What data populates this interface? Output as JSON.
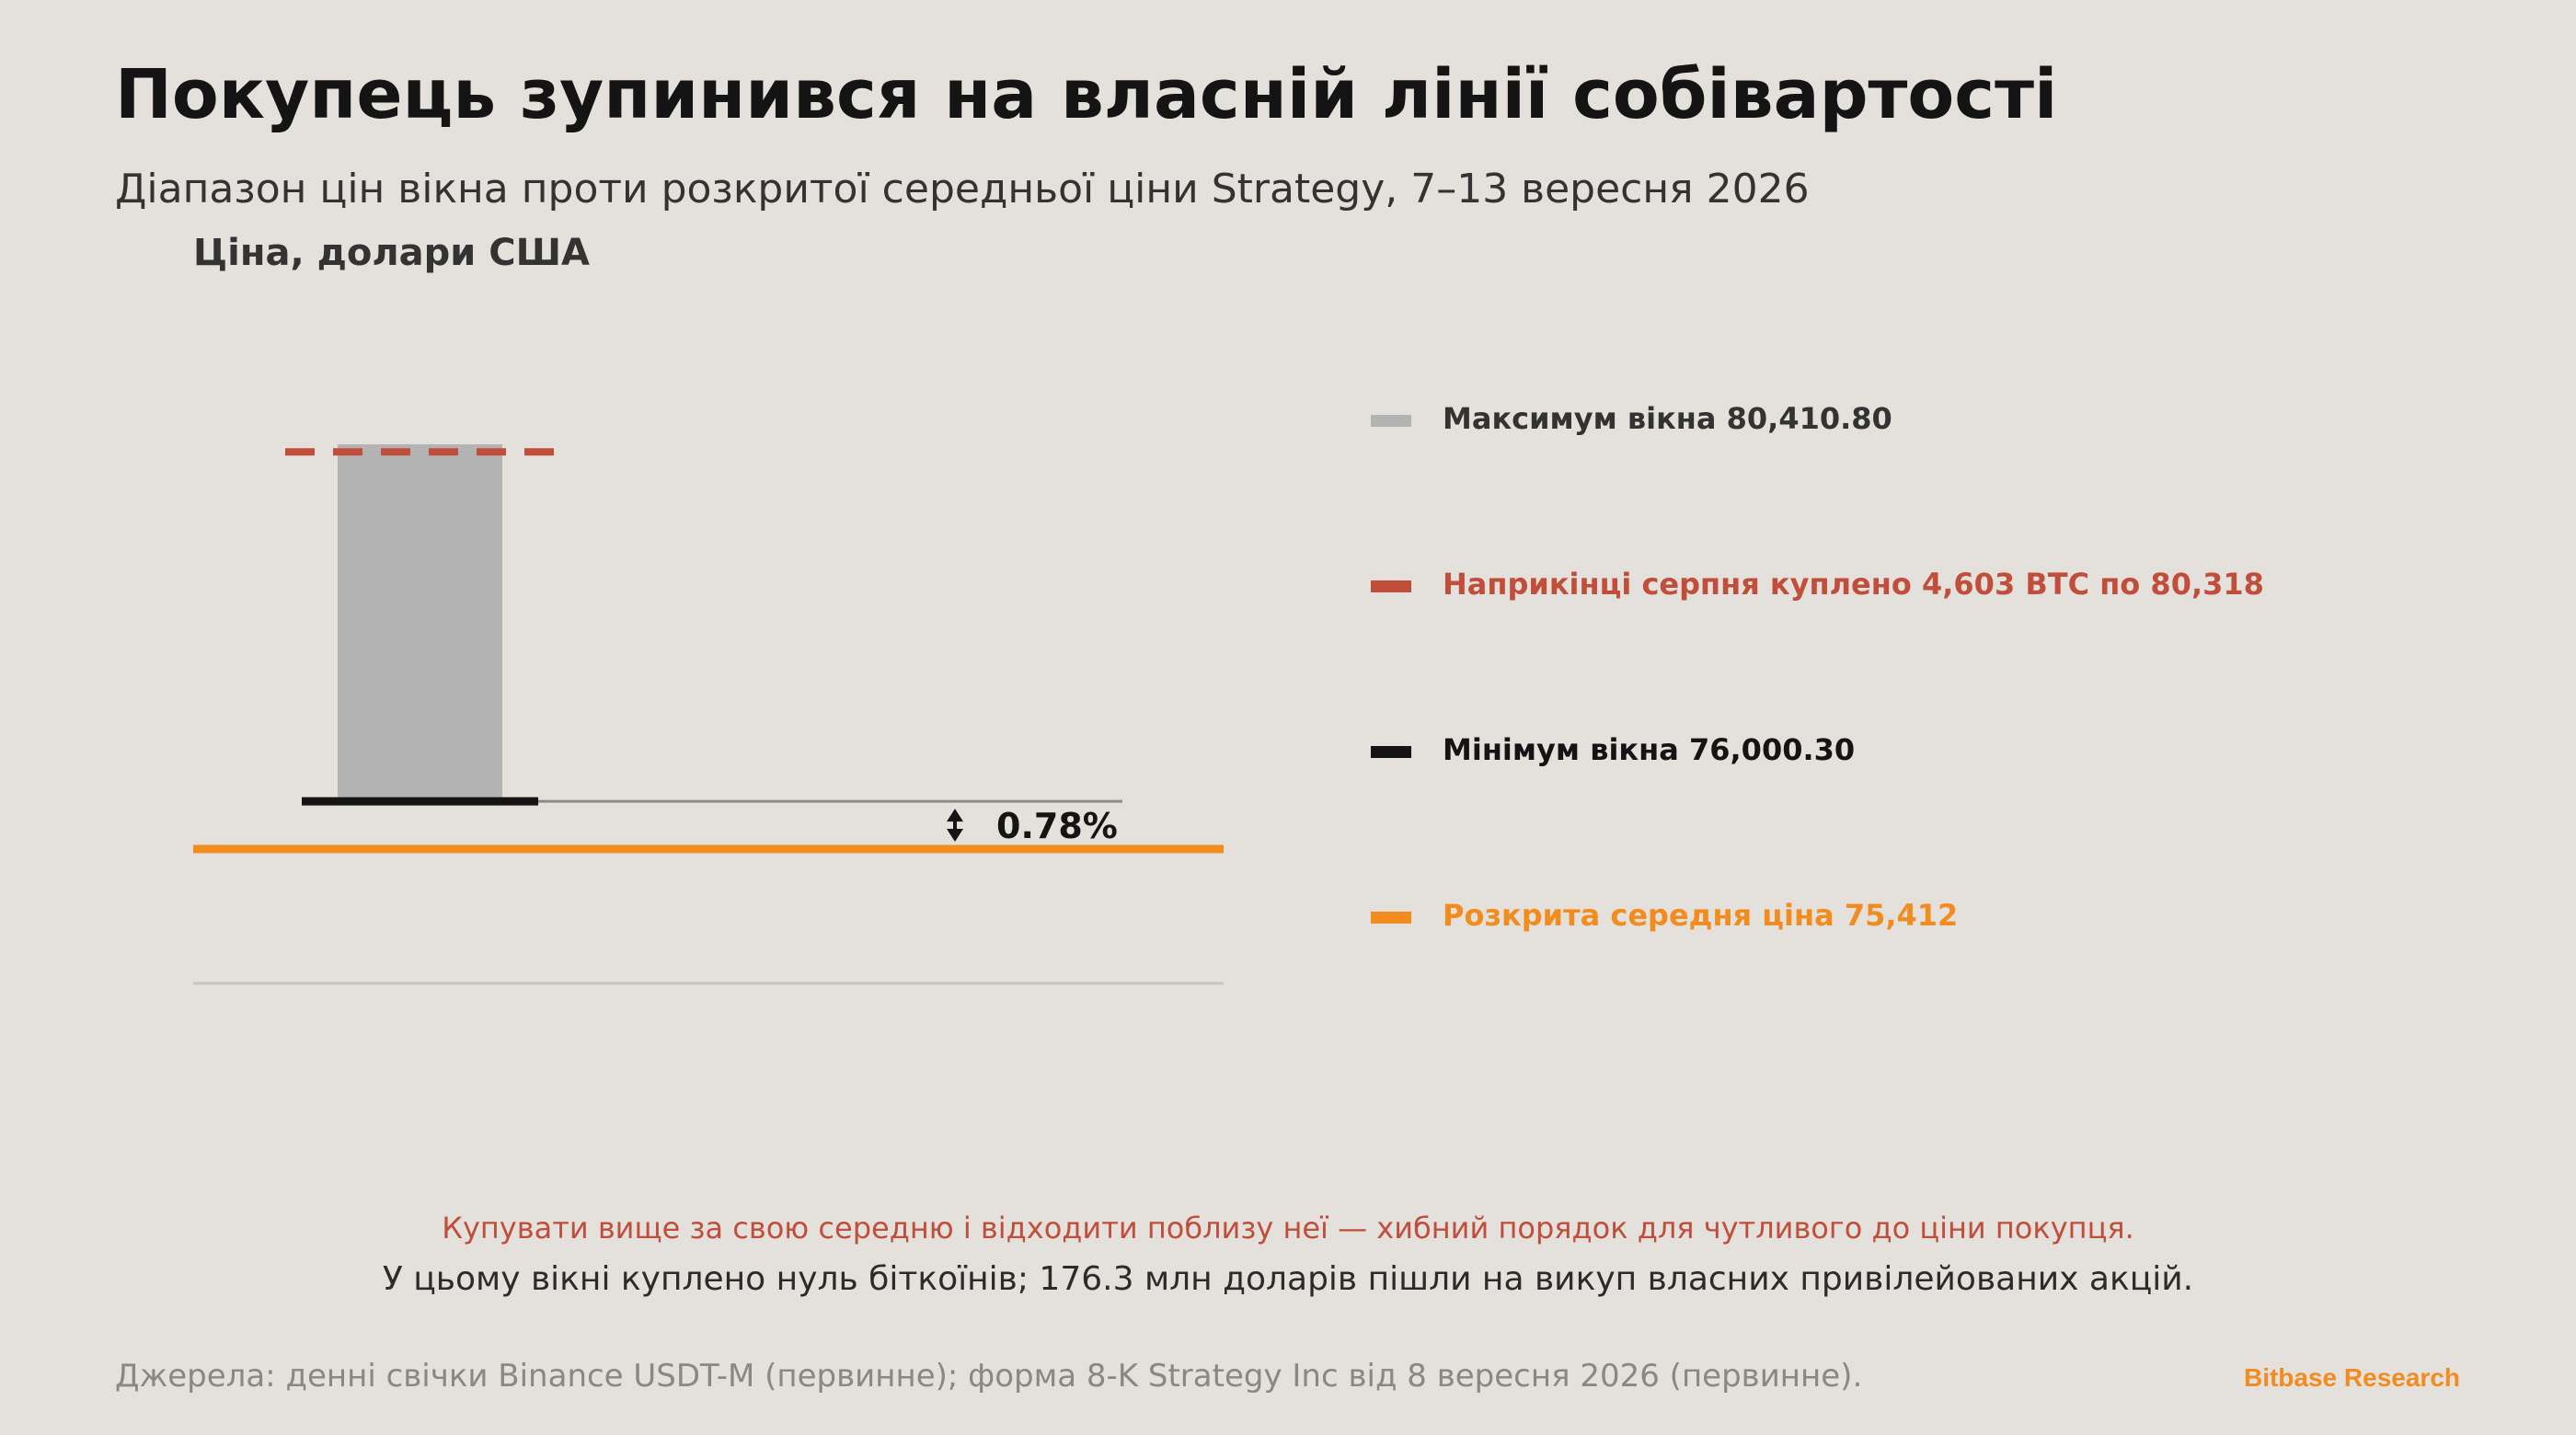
{
  "title": "Покупець зупинився на власній лінії собівартості",
  "subtitle": "Діапазон цін вікна проти розкритої середньої ціни Strategy, 7–13 вересня 2026",
  "colors": {
    "background": "#e4e0db",
    "window_range": "#b3b3b3",
    "window_high": "#b3b3b3",
    "late_august_buy": "#c04e3b",
    "window_low": "#141414",
    "average": "#f28c1e",
    "gap_line": "#8c8c8c",
    "brand": "#f28c1e"
  },
  "chart_data": {
    "type": "range-bar",
    "ylabel": "Ціна, долари США",
    "ylim": [
      73400,
      80900
    ],
    "grid": false,
    "legend_position": "right",
    "range_bar": {
      "low": 76000.3,
      "high": 80410.8
    },
    "reference_lines": [
      {
        "key": "late_august_buy",
        "value": 80318,
        "style": "dashed"
      },
      {
        "key": "window_low",
        "value": 76000.3,
        "style": "solid"
      },
      {
        "key": "average",
        "value": 75412,
        "style": "solid"
      }
    ],
    "gap_annotation": {
      "from": 76000.3,
      "to": 75412,
      "label": "0.78%"
    },
    "legend": [
      {
        "key": "window_high",
        "label": "Максимум вікна 80,410.80"
      },
      {
        "key": "late_august_buy",
        "label": "Наприкінці серпня куплено 4,603 BTC по 80,318"
      },
      {
        "key": "window_low",
        "label": "Мінімум вікна 76,000.30"
      },
      {
        "key": "average",
        "label": "Розкрита середня ціна 75,412"
      }
    ]
  },
  "notes": {
    "highlight": "Купувати вище за свою середню і відходити поблизу неї — хибний порядок для чутливого до ціни покупця.",
    "detail": "У цьому вікні куплено нуль біткоїнів; 176.3 млн доларів пішли на викуп власних привілейованих акцій."
  },
  "footer": {
    "source": "Джерела: денні свічки Binance USDT-M (первинне); форма 8-K Strategy Inc від 8 вересня 2026 (первинне).",
    "brand": "Bitbase Research"
  }
}
